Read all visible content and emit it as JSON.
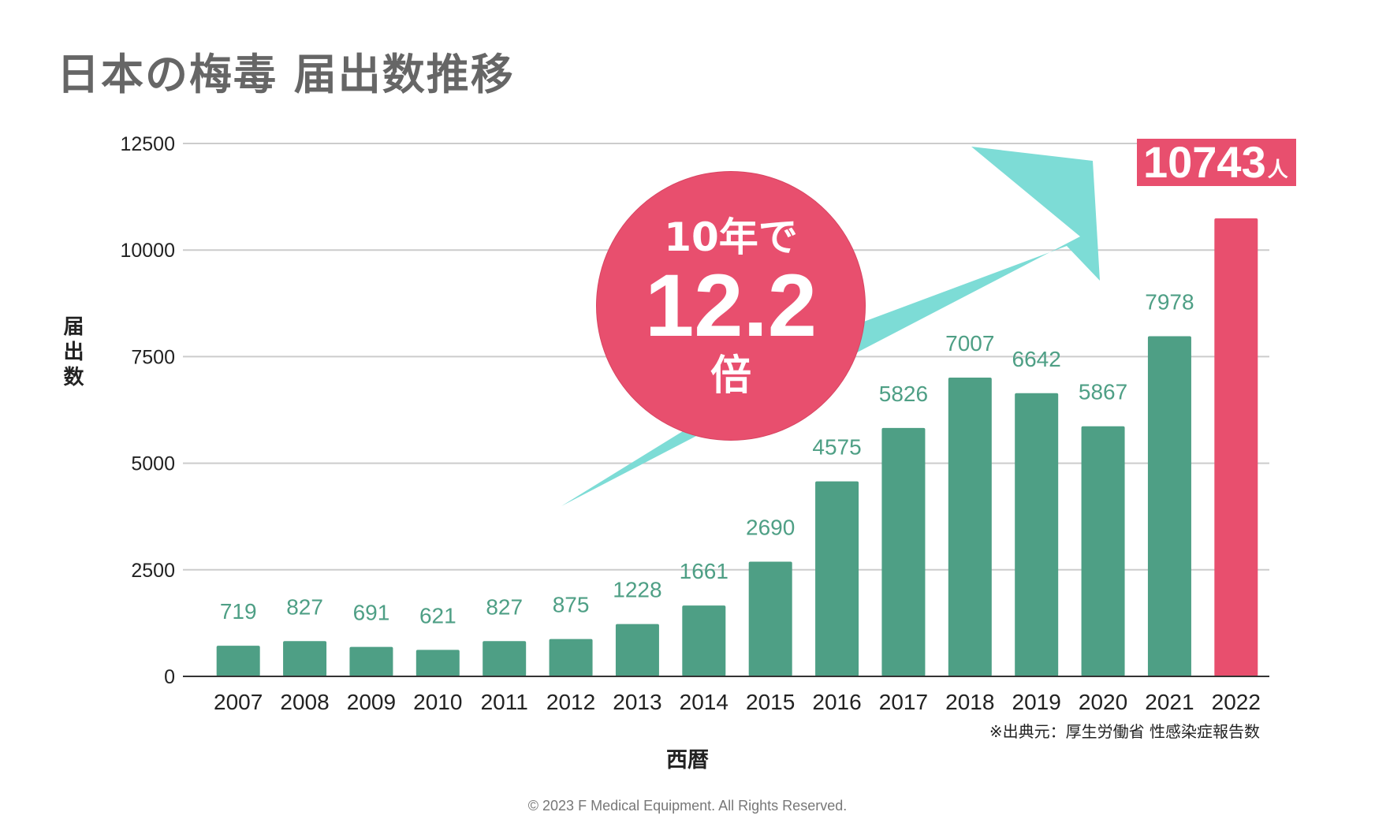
{
  "page": {
    "title": "日本の梅毒 届出数推移",
    "ylabel": "届出数",
    "xlabel": "西暦",
    "source": "※出典元：厚生労働省 性感染症報告数",
    "copyright": "© 2023 F Medical Equipment. All Rights Reserved.",
    "highlight": {
      "line1": "10年で",
      "value": "12.2",
      "line3": "倍"
    },
    "callout": {
      "value": "10743",
      "unit": "人"
    }
  },
  "colors": {
    "bar": "#4e9f85",
    "highlight": "#e84f6e",
    "arrow": "#7ddcd6",
    "grid": "#cccccc",
    "label": "#4e9f85"
  },
  "chart_data": {
    "type": "bar",
    "title": "日本の梅毒 届出数推移",
    "xlabel": "西暦",
    "ylabel": "届出数",
    "categories": [
      "2007",
      "2008",
      "2009",
      "2010",
      "2011",
      "2012",
      "2013",
      "2014",
      "2015",
      "2016",
      "2017",
      "2018",
      "2019",
      "2020",
      "2021",
      "2022"
    ],
    "values": [
      719,
      827,
      691,
      621,
      827,
      875,
      1228,
      1661,
      2690,
      4575,
      5826,
      7007,
      6642,
      5867,
      7978,
      10743
    ],
    "data_labels": [
      "719",
      "827",
      "691",
      "621",
      "827",
      "875",
      "1228",
      "1661",
      "2690",
      "4575",
      "5826",
      "7007",
      "6642",
      "5867",
      "7978",
      ""
    ],
    "highlight_index": 15,
    "ylim": [
      0,
      12500
    ],
    "yticks": [
      0,
      2500,
      5000,
      7500,
      10000,
      12500
    ],
    "grid": true
  }
}
